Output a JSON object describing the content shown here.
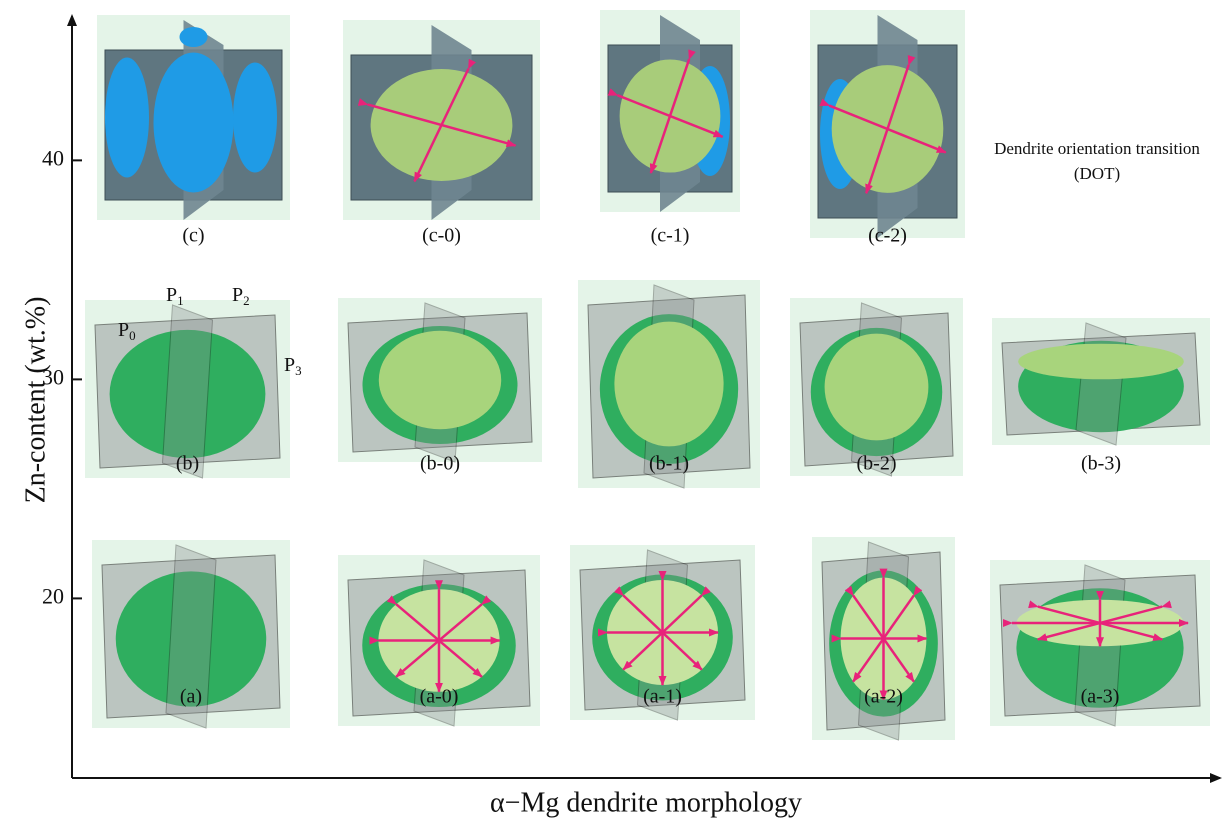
{
  "axes": {
    "y": {
      "label": "Zn-content (wt.%)",
      "ticks": [
        20,
        30,
        40
      ],
      "lim": [
        11.8,
        46.5
      ]
    },
    "x": {
      "label": "α−Mg dendrite morphology"
    }
  },
  "annotation": {
    "line1": "Dendrite orientation transition",
    "line2": "(DOT)"
  },
  "plane_labels": [
    {
      "letter": "P",
      "index": "0"
    },
    {
      "letter": "P",
      "index": "1"
    },
    {
      "letter": "P",
      "index": "2"
    },
    {
      "letter": "P",
      "index": "3"
    }
  ],
  "rows": [
    {
      "panels": [
        "(c)",
        "(c-0)",
        "(c-1)",
        "(c-2)"
      ]
    },
    {
      "panels": [
        "(b)",
        "(b-0)",
        "(b-1)",
        "(b-2)",
        "(b-3)"
      ]
    },
    {
      "panels": [
        "(a)",
        "(a-0)",
        "(a-1)",
        "(a-2)",
        "(a-3)"
      ]
    }
  ]
}
